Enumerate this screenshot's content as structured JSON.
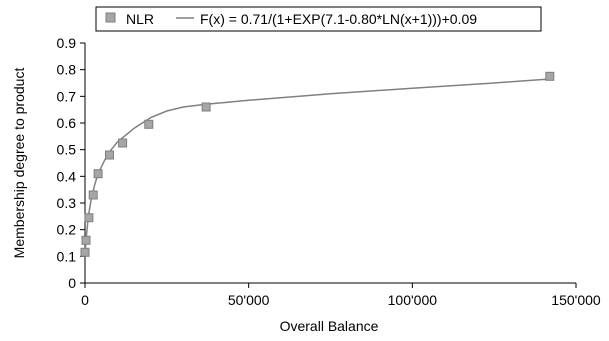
{
  "chart_data": {
    "type": "scatter",
    "xlabel": "Overall Balance",
    "ylabel": "Membership degree to product",
    "xlim": [
      0,
      150000
    ],
    "ylim": [
      0,
      0.9
    ],
    "x_ticks": [
      0,
      50000,
      100000,
      150000
    ],
    "x_tick_labels": [
      "0",
      "50'000",
      "100'000",
      "150'000"
    ],
    "y_ticks": [
      0,
      0.1,
      0.2,
      0.3,
      0.4,
      0.5,
      0.6,
      0.7,
      0.8,
      0.9
    ],
    "y_tick_labels": [
      "0",
      "0.1",
      "0.2",
      "0.3",
      "0.4",
      "0.5",
      "0.6",
      "0.7",
      "0.8",
      "0.9"
    ],
    "grid": false,
    "legend": {
      "placement": "top",
      "entries": [
        {
          "label": "NLR",
          "marker": "square"
        },
        {
          "label": "F(x) = 0.71/(1+EXP(7.1-0.80*LN(x+1)))+0.09",
          "marker": "line"
        }
      ]
    },
    "series": [
      {
        "name": "NLR",
        "kind": "points",
        "x": [
          0,
          300,
          1200,
          2500,
          4000,
          7500,
          11500,
          19500,
          37000,
          142000
        ],
        "y": [
          0.115,
          0.16,
          0.245,
          0.33,
          0.41,
          0.48,
          0.525,
          0.595,
          0.66,
          0.775
        ]
      },
      {
        "name": "F(x) = 0.71/(1+EXP(7.1-0.80*LN(x+1)))+0.09",
        "kind": "line",
        "x": [
          0,
          300,
          1000,
          2000,
          3000,
          4000,
          6000,
          8000,
          10000,
          12000,
          15000,
          20000,
          25000,
          30000,
          37000,
          50000,
          75000,
          100000,
          125000,
          142000
        ],
        "y": [
          0.1,
          0.16,
          0.25,
          0.32,
          0.37,
          0.41,
          0.46,
          0.5,
          0.53,
          0.55,
          0.58,
          0.62,
          0.645,
          0.66,
          0.67,
          0.685,
          0.71,
          0.73,
          0.75,
          0.765
        ]
      }
    ]
  },
  "colors": {
    "marker_fill": "#a6a6a6",
    "marker_stroke": "#7f7f7f",
    "line": "#808080",
    "axis": "#000000"
  }
}
